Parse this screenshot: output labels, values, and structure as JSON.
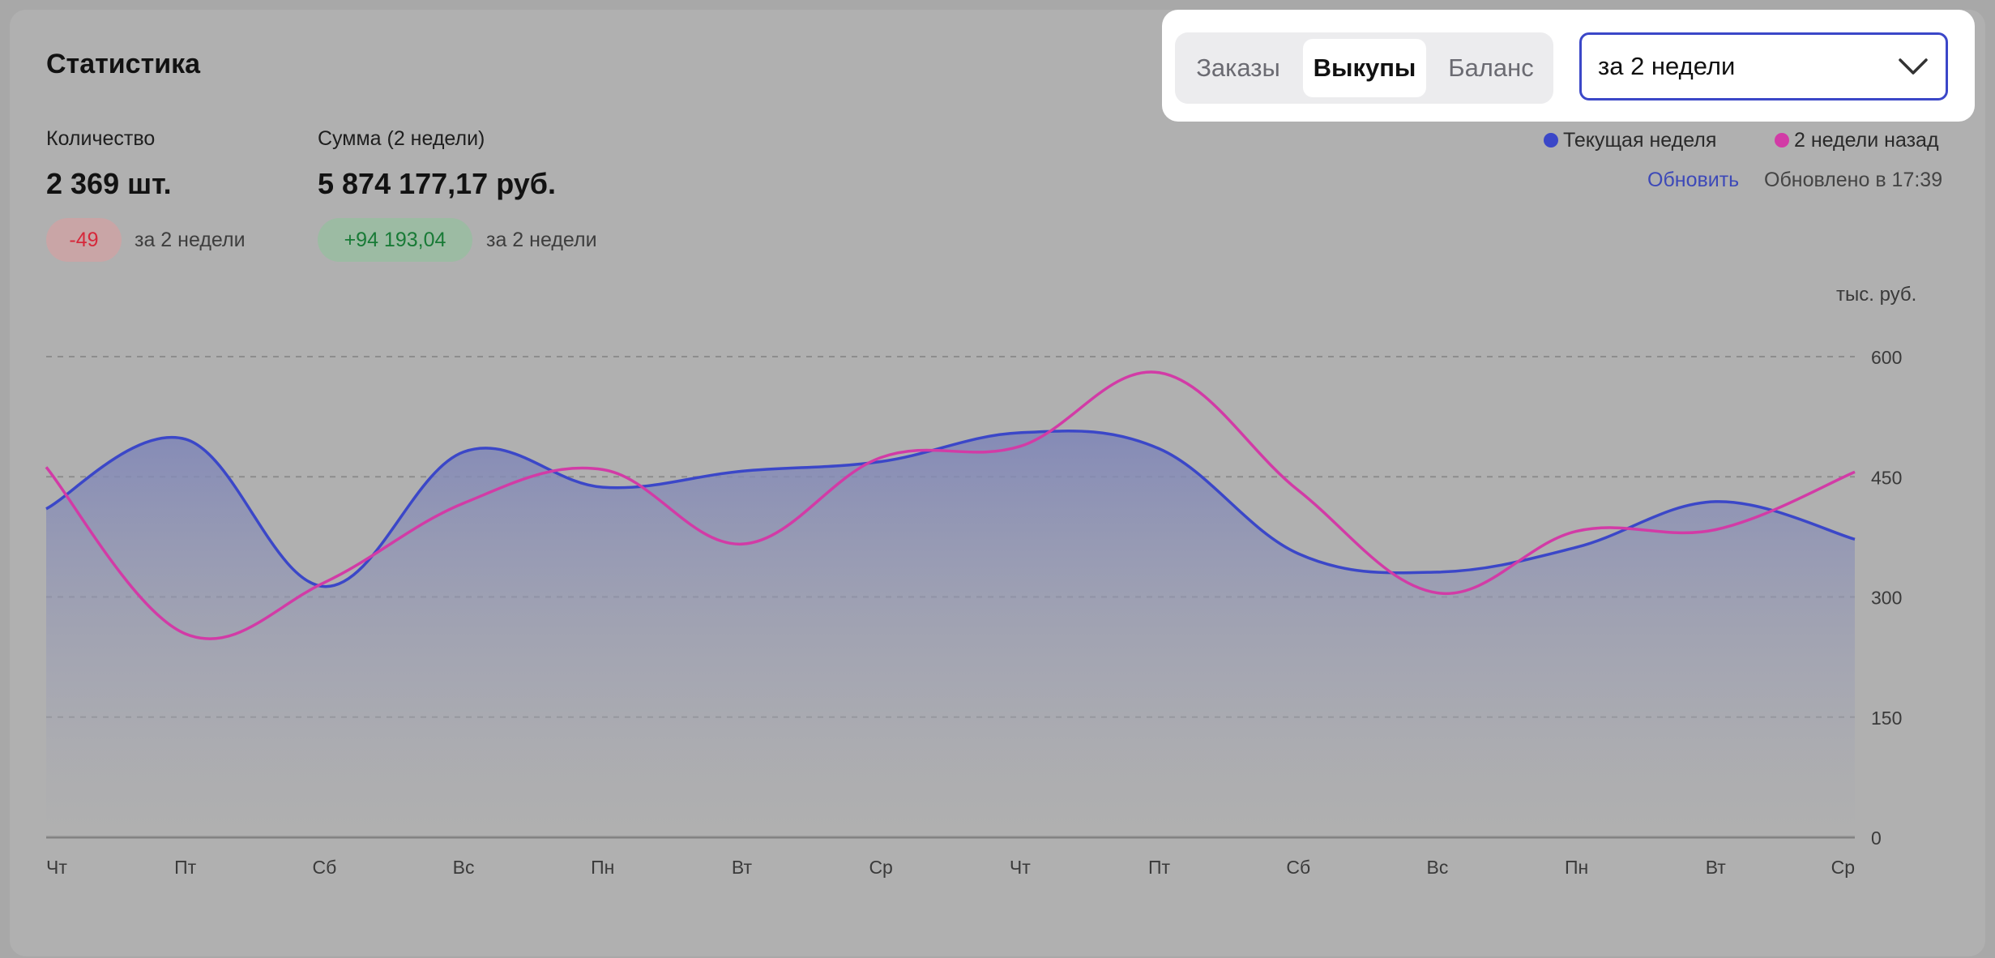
{
  "header": {
    "title": "Статистика"
  },
  "stats": {
    "quantity": {
      "label": "Количество",
      "value": "2 369 шт.",
      "delta": "-49",
      "period": "за 2 недели"
    },
    "sum": {
      "label": "Сумма (2 недели)",
      "value": "5 874 177,17 руб.",
      "delta": "+94 193,04",
      "period": "за 2 недели"
    }
  },
  "tabs": [
    {
      "label": "Заказы",
      "active": false
    },
    {
      "label": "Выкупы",
      "active": true
    },
    {
      "label": "Баланс",
      "active": false
    }
  ],
  "period_select": {
    "value": "за 2 недели"
  },
  "legend": [
    {
      "label": "Текущая неделя",
      "color": "#3b47c8"
    },
    {
      "label": "2 недели назад",
      "color": "#d23ba6"
    }
  ],
  "refresh": {
    "link": "Обновить",
    "status": "Обновлено в 17:39"
  },
  "chart_data": {
    "type": "area",
    "unit_label": "тыс. руб.",
    "x": [
      "Чт",
      "Пт",
      "Сб",
      "Вс",
      "Пн",
      "Вт",
      "Ср",
      "Чт",
      "Пт",
      "Сб",
      "Вс",
      "Пн",
      "Вт",
      "Ср"
    ],
    "ylim": [
      0,
      600
    ],
    "yticks": [
      0,
      150,
      300,
      450,
      600
    ],
    "grid": true,
    "series": [
      {
        "name": "Текущая неделя",
        "color": "#3b47c8",
        "fill": true,
        "values": [
          410,
          497,
          313,
          481,
          437,
          457,
          469,
          505,
          485,
          354,
          331,
          362,
          419,
          372
        ]
      },
      {
        "name": "2 недели назад",
        "color": "#d23ba6",
        "fill": false,
        "values": [
          462,
          254,
          318,
          417,
          459,
          366,
          474,
          488,
          580,
          433,
          305,
          382,
          384,
          456
        ]
      }
    ]
  }
}
